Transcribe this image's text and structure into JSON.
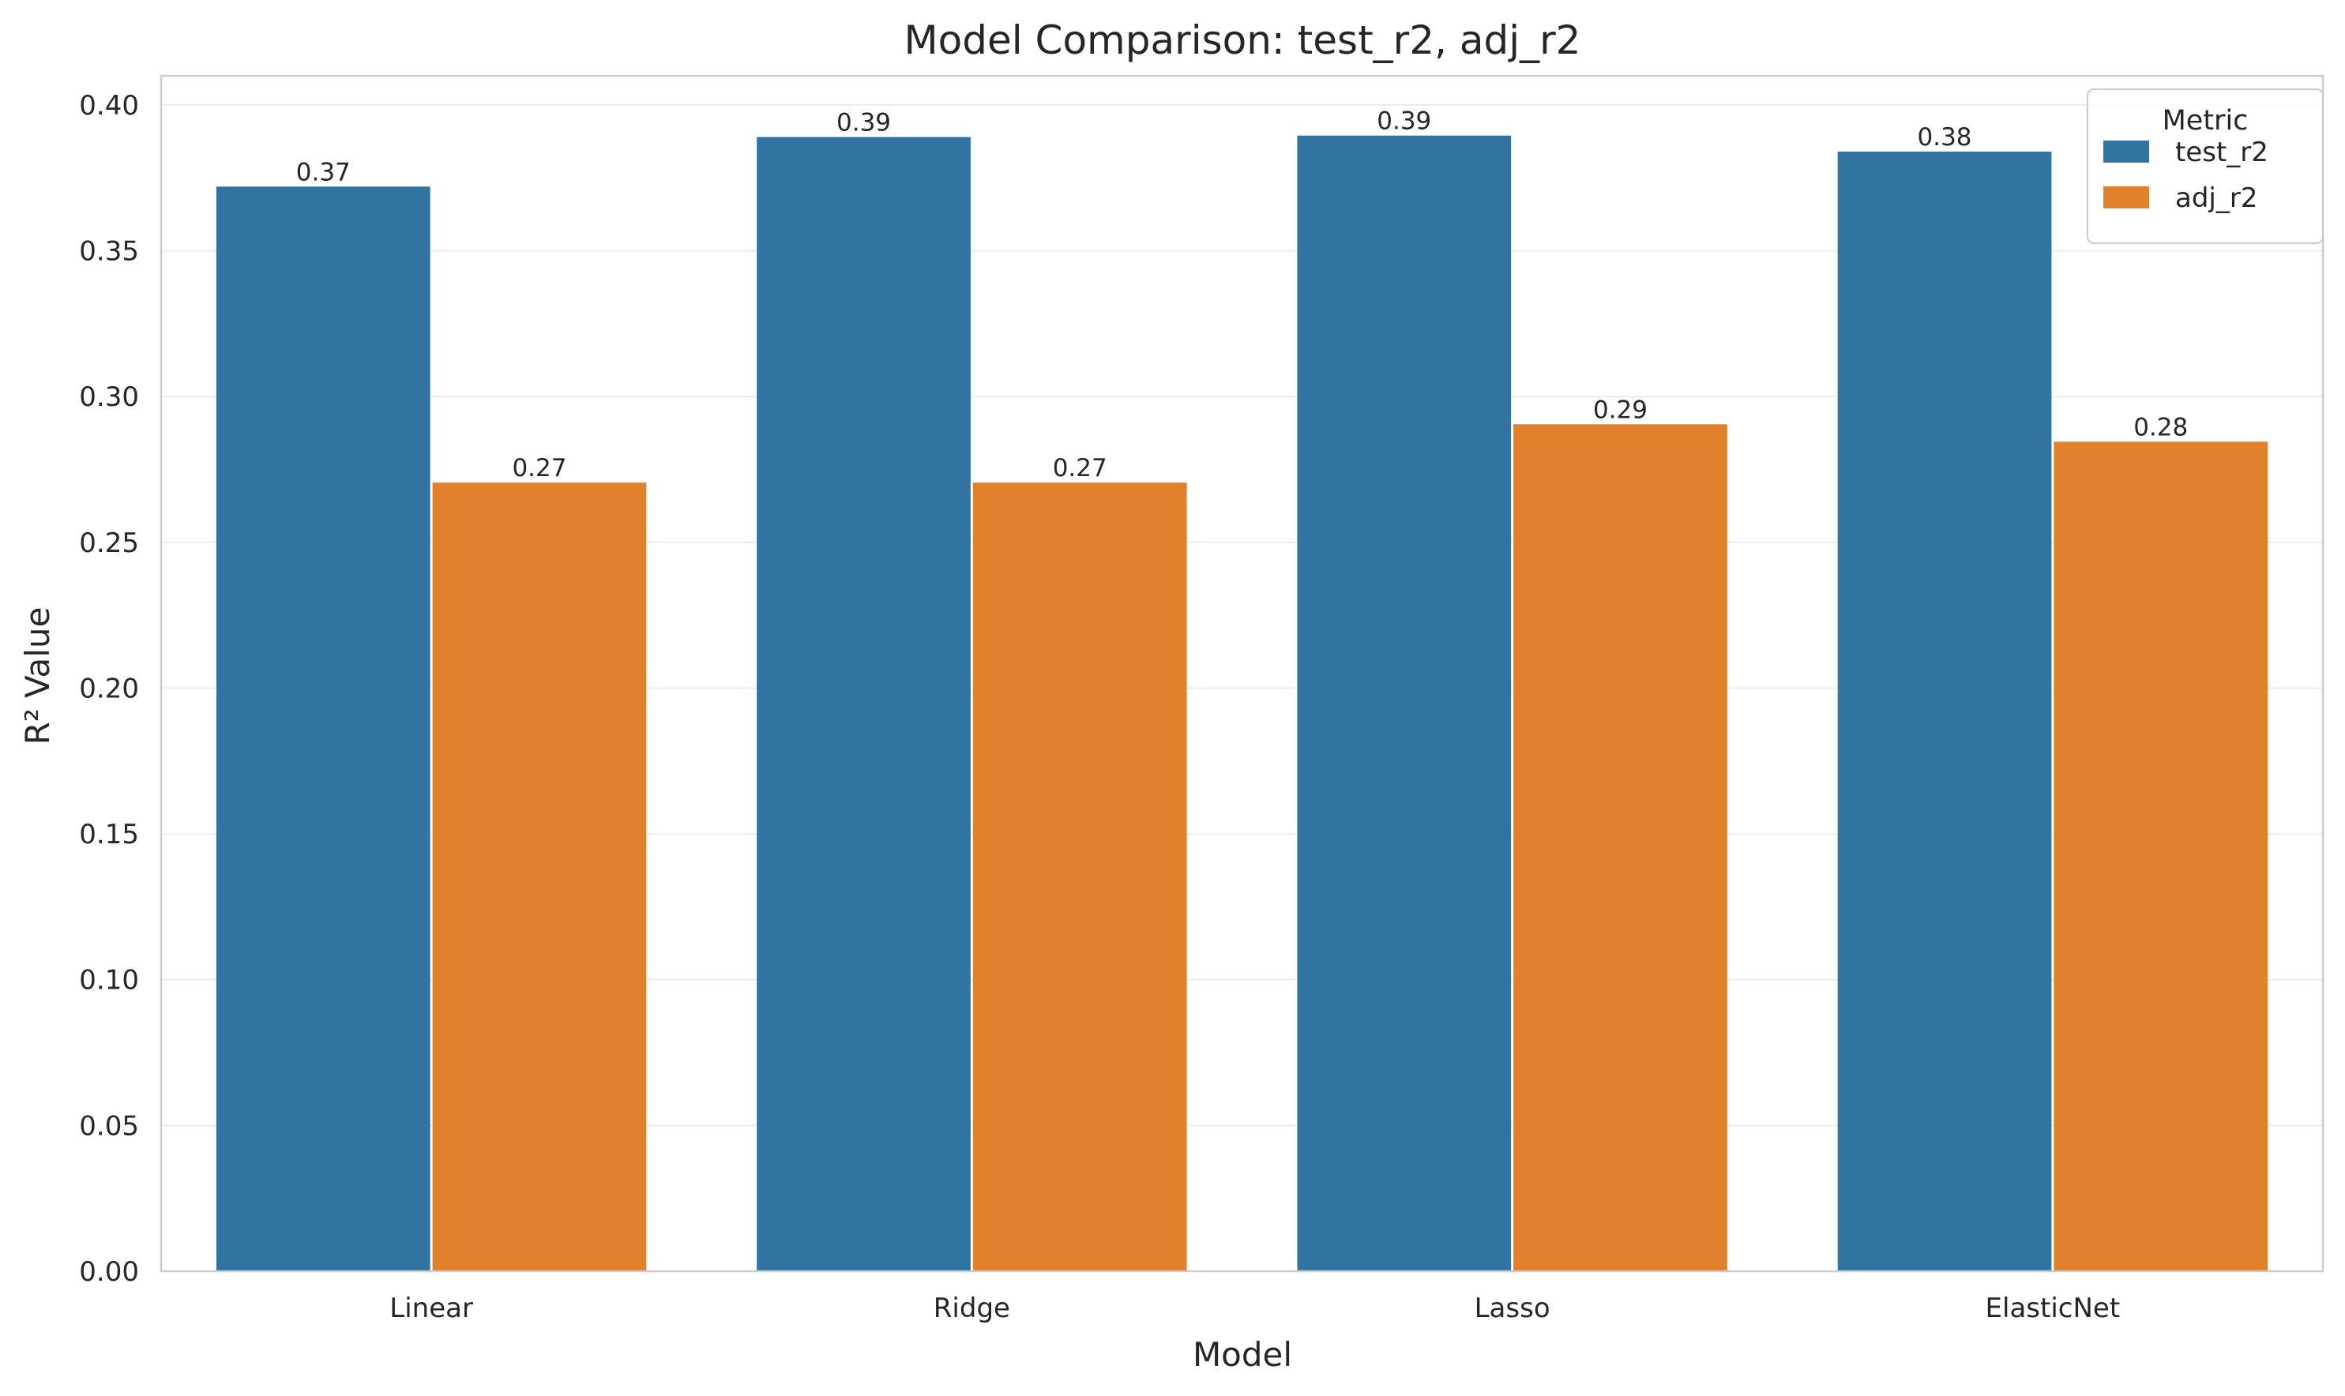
{
  "chart_data": {
    "type": "bar",
    "title": "Model Comparison: test_r2, adj_r2",
    "xlabel": "Model",
    "ylabel": "R² Value",
    "categories": [
      "Linear",
      "Ridge",
      "Lasso",
      "ElasticNet"
    ],
    "series": [
      {
        "name": "test_r2",
        "values": [
          0.372,
          0.389,
          0.3895,
          0.384
        ],
        "labels": [
          "0.37",
          "0.39",
          "0.39",
          "0.38"
        ],
        "color": "#3274a1"
      },
      {
        "name": "adj_r2",
        "values": [
          0.2705,
          0.2705,
          0.2905,
          0.2845
        ],
        "labels": [
          "0.27",
          "0.27",
          "0.29",
          "0.28"
        ],
        "color": "#e1812c"
      }
    ],
    "ylim": [
      0,
      0.41
    ],
    "yticks": [
      0.0,
      0.05,
      0.1,
      0.15,
      0.2,
      0.25,
      0.3,
      0.35,
      0.4
    ],
    "ytick_labels": [
      "0.00",
      "0.05",
      "0.10",
      "0.15",
      "0.20",
      "0.25",
      "0.30",
      "0.35",
      "0.40"
    ],
    "grid": "horizontal",
    "legend": {
      "title": "Metric",
      "placement": "top-right"
    }
  }
}
